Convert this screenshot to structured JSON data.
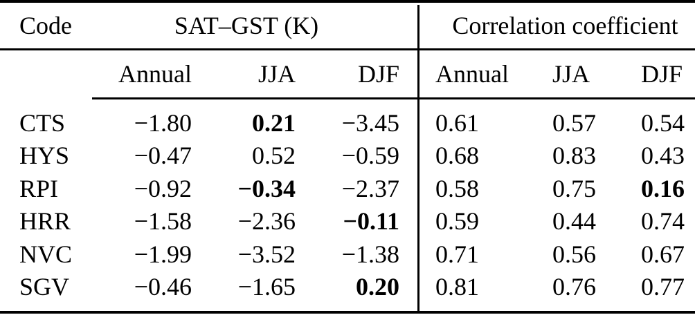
{
  "table": {
    "header": {
      "code": "Code",
      "sat_group": "SAT–GST (K)",
      "corr_group": "Correlation coefficient"
    },
    "subheaders": {
      "sat": [
        "Annual",
        "JJA",
        "DJF"
      ],
      "corr": [
        "Annual",
        "JJA",
        "DJF"
      ]
    },
    "rows": [
      {
        "code": "CTS",
        "sat": [
          {
            "v": "−1.80",
            "bold": false
          },
          {
            "v": "0.21",
            "bold": true
          },
          {
            "v": "−3.45",
            "bold": false
          }
        ],
        "corr": [
          {
            "v": "0.61",
            "bold": false
          },
          {
            "v": "0.57",
            "bold": false
          },
          {
            "v": "0.54",
            "bold": false
          }
        ]
      },
      {
        "code": "HYS",
        "sat": [
          {
            "v": "−0.47",
            "bold": false
          },
          {
            "v": "0.52",
            "bold": false
          },
          {
            "v": "−0.59",
            "bold": false
          }
        ],
        "corr": [
          {
            "v": "0.68",
            "bold": false
          },
          {
            "v": "0.83",
            "bold": false
          },
          {
            "v": "0.43",
            "bold": false
          }
        ]
      },
      {
        "code": "RPI",
        "sat": [
          {
            "v": "−0.92",
            "bold": false
          },
          {
            "v": "−0.34",
            "bold": true
          },
          {
            "v": "−2.37",
            "bold": false
          }
        ],
        "corr": [
          {
            "v": "0.58",
            "bold": false
          },
          {
            "v": "0.75",
            "bold": false
          },
          {
            "v": "0.16",
            "bold": true
          }
        ]
      },
      {
        "code": "HRR",
        "sat": [
          {
            "v": "−1.58",
            "bold": false
          },
          {
            "v": "−2.36",
            "bold": false
          },
          {
            "v": "−0.11",
            "bold": true
          }
        ],
        "corr": [
          {
            "v": "0.59",
            "bold": false
          },
          {
            "v": "0.44",
            "bold": false
          },
          {
            "v": "0.74",
            "bold": false
          }
        ]
      },
      {
        "code": "NVC",
        "sat": [
          {
            "v": "−1.99",
            "bold": false
          },
          {
            "v": "−3.52",
            "bold": false
          },
          {
            "v": "−1.38",
            "bold": false
          }
        ],
        "corr": [
          {
            "v": "0.71",
            "bold": false
          },
          {
            "v": "0.56",
            "bold": false
          },
          {
            "v": "0.67",
            "bold": false
          }
        ]
      },
      {
        "code": "SGV",
        "sat": [
          {
            "v": "−0.46",
            "bold": false
          },
          {
            "v": "−1.65",
            "bold": false
          },
          {
            "v": "0.20",
            "bold": true
          }
        ],
        "corr": [
          {
            "v": "0.81",
            "bold": false
          },
          {
            "v": "0.76",
            "bold": false
          },
          {
            "v": "0.77",
            "bold": false
          }
        ]
      }
    ]
  },
  "colors": {
    "text": "#000000",
    "background": "#ffffff",
    "rule": "#000000"
  }
}
